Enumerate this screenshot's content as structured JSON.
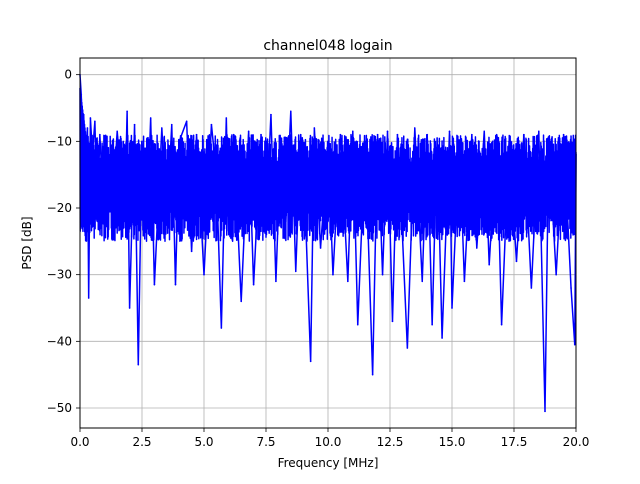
{
  "chart_data": {
    "type": "line",
    "title": "channel048 logain",
    "xlabel": "Frequency [MHz]",
    "ylabel": "PSD [dB]",
    "xlim": [
      0,
      20
    ],
    "ylim": [
      -53,
      2.5
    ],
    "x_ticks": [
      0,
      2.5,
      5,
      7.5,
      10,
      12.5,
      15,
      17.5,
      20
    ],
    "x_tick_labels": [
      "0.0",
      "2.5",
      "5.0",
      "7.5",
      "10.0",
      "12.5",
      "15.0",
      "17.5",
      "20.0"
    ],
    "y_ticks": [
      0,
      -10,
      -20,
      -30,
      -40,
      -50
    ],
    "y_tick_labels": [
      "0",
      "−10",
      "−20",
      "−30",
      "−40",
      "−50"
    ],
    "grid": true,
    "legend": null,
    "line_color": "#0000ff",
    "series": [
      {
        "points": [
          [
            0.0,
            0.0
          ],
          [
            0.05,
            -3.0
          ],
          [
            0.1,
            -9.0
          ],
          [
            0.15,
            -6.0
          ],
          [
            0.2,
            -14.0
          ],
          [
            0.3,
            -8.0
          ],
          [
            0.35,
            -33.5
          ],
          [
            0.42,
            -6.5
          ],
          [
            0.5,
            -12.0
          ],
          [
            0.6,
            -7.0
          ],
          [
            0.7,
            -22.0
          ],
          [
            0.8,
            -9.0
          ],
          [
            1.0,
            -24.0
          ],
          [
            1.1,
            -12.0
          ],
          [
            1.3,
            -20.0
          ],
          [
            1.5,
            -8.5
          ],
          [
            1.8,
            -22.0
          ],
          [
            1.9,
            -5.5
          ],
          [
            2.0,
            -35.0
          ],
          [
            2.2,
            -7.5
          ],
          [
            2.35,
            -43.5
          ],
          [
            2.5,
            -10.0
          ],
          [
            2.7,
            -22.0
          ],
          [
            2.85,
            -6.5
          ],
          [
            3.0,
            -31.5
          ],
          [
            3.3,
            -8.0
          ],
          [
            3.5,
            -22.0
          ],
          [
            3.7,
            -7.5
          ],
          [
            3.85,
            -31.5
          ],
          [
            4.0,
            -10.0
          ],
          [
            4.3,
            -7.0
          ],
          [
            4.5,
            -26.5
          ],
          [
            4.7,
            -9.0
          ],
          [
            5.0,
            -30.0
          ],
          [
            5.3,
            -7.5
          ],
          [
            5.5,
            -15.0
          ],
          [
            5.7,
            -38.0
          ],
          [
            5.9,
            -6.5
          ],
          [
            6.0,
            -24.0
          ],
          [
            6.2,
            -9.0
          ],
          [
            6.5,
            -34.0
          ],
          [
            6.8,
            -8.5
          ],
          [
            7.0,
            -31.5
          ],
          [
            7.3,
            -9.0
          ],
          [
            7.5,
            -22.0
          ],
          [
            7.7,
            -6.0
          ],
          [
            7.9,
            -31.0
          ],
          [
            8.1,
            -10.0
          ],
          [
            8.3,
            -22.0
          ],
          [
            8.5,
            -5.5
          ],
          [
            8.7,
            -29.5
          ],
          [
            8.9,
            -9.0
          ],
          [
            9.1,
            -22.0
          ],
          [
            9.3,
            -43.0
          ],
          [
            9.45,
            -8.0
          ],
          [
            9.7,
            -26.0
          ],
          [
            10.0,
            -10.0
          ],
          [
            10.2,
            -30.0
          ],
          [
            10.5,
            -9.0
          ],
          [
            10.8,
            -31.0
          ],
          [
            11.0,
            -8.5
          ],
          [
            11.2,
            -37.5
          ],
          [
            11.5,
            -10.0
          ],
          [
            11.8,
            -45.0
          ],
          [
            12.0,
            -9.0
          ],
          [
            12.2,
            -30.0
          ],
          [
            12.4,
            -8.5
          ],
          [
            12.6,
            -37.0
          ],
          [
            12.8,
            -9.0
          ],
          [
            13.0,
            -24.0
          ],
          [
            13.2,
            -41.0
          ],
          [
            13.5,
            -8.0
          ],
          [
            13.8,
            -31.0
          ],
          [
            14.0,
            -9.0
          ],
          [
            14.2,
            -37.5
          ],
          [
            14.4,
            -9.5
          ],
          [
            14.6,
            -39.5
          ],
          [
            14.9,
            -8.5
          ],
          [
            15.0,
            -35.0
          ],
          [
            15.3,
            -10.0
          ],
          [
            15.5,
            -31.0
          ],
          [
            15.8,
            -9.0
          ],
          [
            16.0,
            -26.0
          ],
          [
            16.3,
            -8.5
          ],
          [
            16.5,
            -28.5
          ],
          [
            16.8,
            -9.0
          ],
          [
            17.0,
            -37.5
          ],
          [
            17.3,
            -10.0
          ],
          [
            17.6,
            -28.0
          ],
          [
            17.9,
            -9.0
          ],
          [
            18.2,
            -32.0
          ],
          [
            18.5,
            -8.5
          ],
          [
            18.75,
            -50.5
          ],
          [
            18.9,
            -10.0
          ],
          [
            19.2,
            -30.0
          ],
          [
            19.5,
            -9.0
          ],
          [
            19.8,
            -32.0
          ],
          [
            19.95,
            -40.5
          ],
          [
            20.0,
            -12.0
          ]
        ]
      }
    ]
  }
}
